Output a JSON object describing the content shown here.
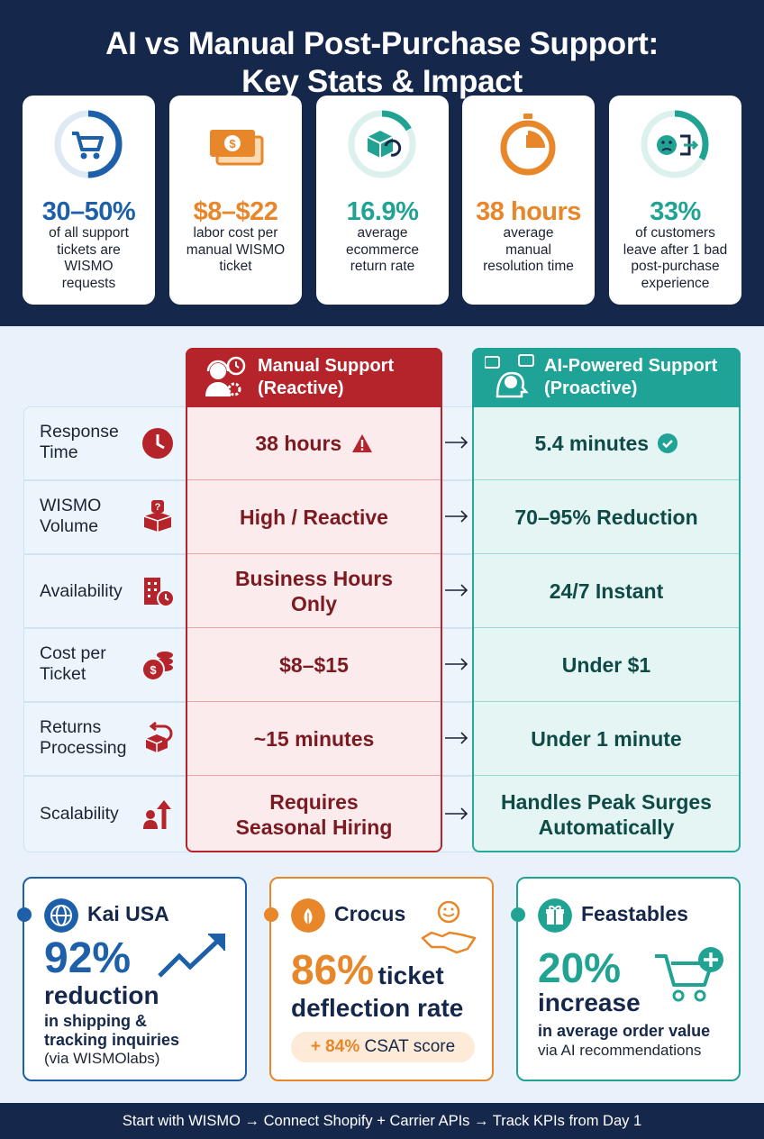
{
  "header": {
    "title_line1": "AI vs Manual Post-Purchase Support:",
    "title_line2": "Key Stats & Impact"
  },
  "stats": [
    {
      "value": "30–50%",
      "desc_lines": [
        "of all support",
        "tickets are",
        "WISMO",
        "requests"
      ],
      "color": "#1d5fa8",
      "icon": "shopping-cart-icon",
      "ring_fraction": 0.5
    },
    {
      "value": "$8–$22",
      "desc_lines": [
        "labor cost per",
        "manual WISMO",
        "ticket"
      ],
      "color": "#e8862a",
      "icon": "money-bills-icon"
    },
    {
      "value": "16.9%",
      "desc_lines": [
        "average",
        "ecommerce",
        "return rate"
      ],
      "color": "#21a394",
      "icon": "return-box-icon",
      "ring_fraction": 0.169
    },
    {
      "value": "38 hours",
      "desc_lines": [
        "average",
        "manual",
        "resolution time"
      ],
      "color": "#e8862a",
      "icon": "stopwatch-icon"
    },
    {
      "value": "33%",
      "desc_lines": [
        "of customers",
        "leave after 1 bad",
        "post-purchase",
        "experience"
      ],
      "color": "#21a394",
      "icon": "sad-exit-icon",
      "ring_fraction": 0.33
    }
  ],
  "comparison": {
    "manual_header": [
      "Manual Support",
      "(Reactive)"
    ],
    "ai_header": [
      "AI-Powered Support",
      "(Proactive)"
    ],
    "rows": [
      {
        "label": [
          "Response",
          "Time"
        ],
        "icon": "clock-icon",
        "manual": [
          "38 hours"
        ],
        "ai": [
          "5.4 minutes"
        ],
        "manual_badge": "warning-icon",
        "ai_badge": "check-icon"
      },
      {
        "label": [
          "WISMO",
          "Volume"
        ],
        "icon": "question-box-icon",
        "manual": [
          "High / Reactive"
        ],
        "ai": [
          "70–95% Reduction"
        ]
      },
      {
        "label": [
          "Availability"
        ],
        "icon": "building-clock-icon",
        "manual": [
          "Business Hours",
          "Only"
        ],
        "ai": [
          "24/7 Instant"
        ]
      },
      {
        "label": [
          "Cost per",
          "Ticket"
        ],
        "icon": "coins-icon",
        "manual": [
          "$8–$15"
        ],
        "ai": [
          "Under $1"
        ]
      },
      {
        "label": [
          "Returns",
          "Processing"
        ],
        "icon": "return-box-icon",
        "manual": [
          "~15 minutes"
        ],
        "ai": [
          "Under 1 minute"
        ]
      },
      {
        "label": [
          "Scalability"
        ],
        "icon": "growth-person-icon",
        "manual": [
          "Requires",
          "Seasonal Hiring"
        ],
        "ai": [
          "Handles Peak Surges",
          "Automatically"
        ]
      }
    ]
  },
  "cases": [
    {
      "name": "Kai USA",
      "color": "#1d5fa8",
      "icon": "globe-icon",
      "big": "92%",
      "big2": "reduction",
      "sub": [
        "in shipping &",
        "tracking inquiries"
      ],
      "note": "(via WISMOlabs)"
    },
    {
      "name": "Crocus",
      "color": "#e8862a",
      "icon": "leaf-icon",
      "big": "86%",
      "big_suffix": "ticket",
      "big2": "deflection rate",
      "pill_bold": "+ 84%",
      "pill_rest": "CSAT score"
    },
    {
      "name": "Feastables",
      "color": "#21a394",
      "icon": "gift-icon",
      "big": "20%",
      "big2": "increase",
      "sub": [
        "in average order value"
      ],
      "note": "via AI recommendations"
    }
  ],
  "footer": {
    "text": "Start with WISMO → Connect Shopify + Carrier APIs → Track KPIs from Day 1"
  }
}
